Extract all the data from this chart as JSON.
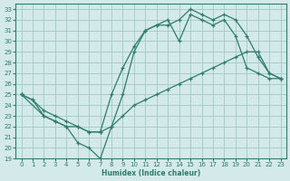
{
  "xlabel": "Humidex (Indice chaleur)",
  "bg_color": "#d4e9e9",
  "grid_color": "#a8cccc",
  "line_color": "#2e7d6e",
  "xlim": [
    -0.5,
    23.5
  ],
  "ylim": [
    19,
    33.5
  ],
  "xticks": [
    0,
    1,
    2,
    3,
    4,
    5,
    6,
    7,
    8,
    9,
    10,
    11,
    12,
    13,
    14,
    15,
    16,
    17,
    18,
    19,
    20,
    21,
    22,
    23
  ],
  "yticks": [
    19,
    20,
    21,
    22,
    23,
    24,
    25,
    26,
    27,
    28,
    29,
    30,
    31,
    32,
    33
  ],
  "line1_x": [
    0,
    1,
    2,
    3,
    4,
    5,
    6,
    7,
    8,
    9,
    10,
    11,
    12,
    13,
    14,
    15,
    16,
    17,
    18,
    19,
    20,
    21,
    22,
    23
  ],
  "line1_y": [
    25,
    24.5,
    23,
    22.5,
    22,
    20.5,
    20,
    19,
    22,
    25,
    29,
    31,
    31.5,
    32,
    30,
    32.5,
    32,
    31.5,
    32,
    30.5,
    27.5,
    27,
    26.5,
    26.5
  ],
  "line2_x": [
    0,
    2,
    3,
    4,
    5,
    6,
    7,
    8,
    9,
    10,
    11,
    12,
    13,
    14,
    15,
    16,
    17,
    18,
    19,
    20,
    21,
    22,
    23
  ],
  "line2_y": [
    25,
    23,
    22.5,
    22,
    22,
    21.5,
    21.5,
    25,
    27.5,
    29.5,
    31,
    31.5,
    31.5,
    32,
    33,
    32.5,
    32,
    32.5,
    32,
    30.5,
    28.5,
    27,
    26.5
  ],
  "line3_x": [
    0,
    1,
    2,
    3,
    4,
    5,
    6,
    7,
    8,
    9,
    10,
    11,
    12,
    13,
    14,
    15,
    16,
    17,
    18,
    19,
    20,
    21,
    22,
    23
  ],
  "line3_y": [
    25,
    24.5,
    23.5,
    23,
    22.5,
    22,
    21.5,
    21.5,
    22,
    23,
    24,
    24.5,
    25,
    25.5,
    26,
    26.5,
    27,
    27.5,
    28,
    28.5,
    29,
    29,
    27,
    26.5
  ]
}
